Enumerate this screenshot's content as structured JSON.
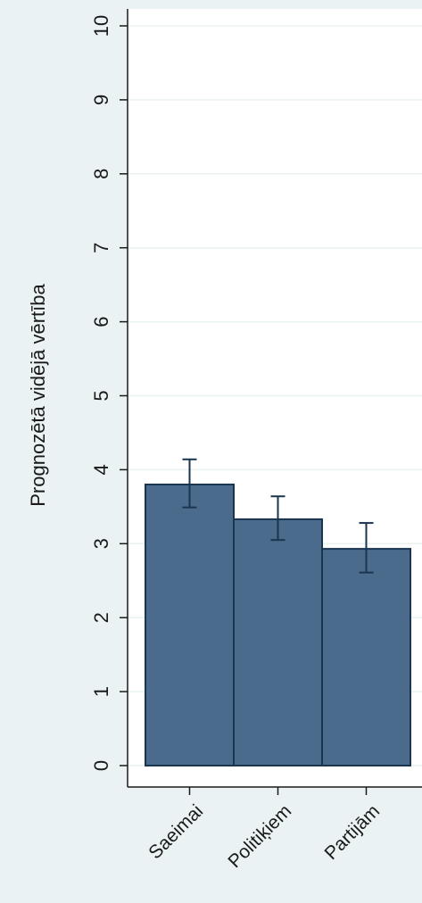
{
  "chart_data": {
    "type": "bar",
    "title": "",
    "xlabel": "",
    "ylabel": "Prognozētā vidējā vērtība",
    "categories": [
      "Saeimai",
      "Politiķiem",
      "Partijām"
    ],
    "values": [
      3.8,
      3.33,
      2.93
    ],
    "error_low": [
      3.49,
      3.05,
      2.61
    ],
    "error_high": [
      4.14,
      3.64,
      3.28
    ],
    "ylim": [
      0,
      10
    ],
    "yticks": [
      "0",
      "1",
      "2",
      "3",
      "4",
      "5",
      "6",
      "7",
      "8",
      "9",
      "10"
    ],
    "grid": true,
    "legend": "none",
    "colors": {
      "background": "#eaf2f3",
      "plot_area": "#ffffff",
      "bar_fill": "#4a6b8c",
      "bar_edge": "#1a3550",
      "error_bar": "#1a3550",
      "grid": "#eaf2f3",
      "axis": "#1a1a1a"
    }
  }
}
